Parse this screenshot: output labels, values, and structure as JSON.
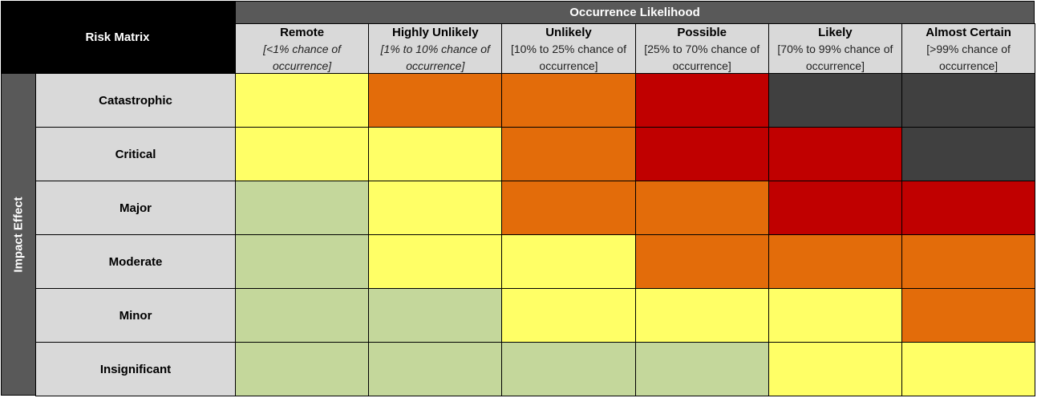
{
  "matrix": {
    "title": "Risk Matrix",
    "column_group": "Occurrence Likelihood",
    "row_group": "Impact Effect",
    "columns": [
      {
        "name": "Remote",
        "note": "[<1% chance of occurrence]",
        "italic": true
      },
      {
        "name": "Highly Unlikely",
        "note": "[1% to 10% chance of occurrence]",
        "italic": true
      },
      {
        "name": "Unlikely",
        "note": "[10% to 25% chance of occurrence]",
        "italic": false
      },
      {
        "name": "Possible",
        "note": "[25% to 70% chance of occurrence]",
        "italic": false
      },
      {
        "name": "Likely",
        "note": "[70% to 99% chance of occurrence]",
        "italic": false
      },
      {
        "name": "Almost Certain",
        "note": "[>99% chance of occurrence]",
        "italic": false
      }
    ],
    "rows": [
      "Catastrophic",
      "Critical",
      "Major",
      "Moderate",
      "Minor",
      "Insignificant"
    ],
    "cell_colors": [
      [
        "#ffff66",
        "#e36c0a",
        "#e36c0a",
        "#c00000",
        "#404040",
        "#404040"
      ],
      [
        "#ffff66",
        "#ffff66",
        "#e36c0a",
        "#c00000",
        "#c00000",
        "#404040"
      ],
      [
        "#c4d79b",
        "#ffff66",
        "#e36c0a",
        "#e36c0a",
        "#c00000",
        "#c00000"
      ],
      [
        "#c4d79b",
        "#ffff66",
        "#ffff66",
        "#e36c0a",
        "#e36c0a",
        "#e36c0a"
      ],
      [
        "#c4d79b",
        "#c4d79b",
        "#ffff66",
        "#ffff66",
        "#ffff66",
        "#e36c0a"
      ],
      [
        "#c4d79b",
        "#c4d79b",
        "#c4d79b",
        "#c4d79b",
        "#ffff66",
        "#ffff66"
      ]
    ]
  }
}
